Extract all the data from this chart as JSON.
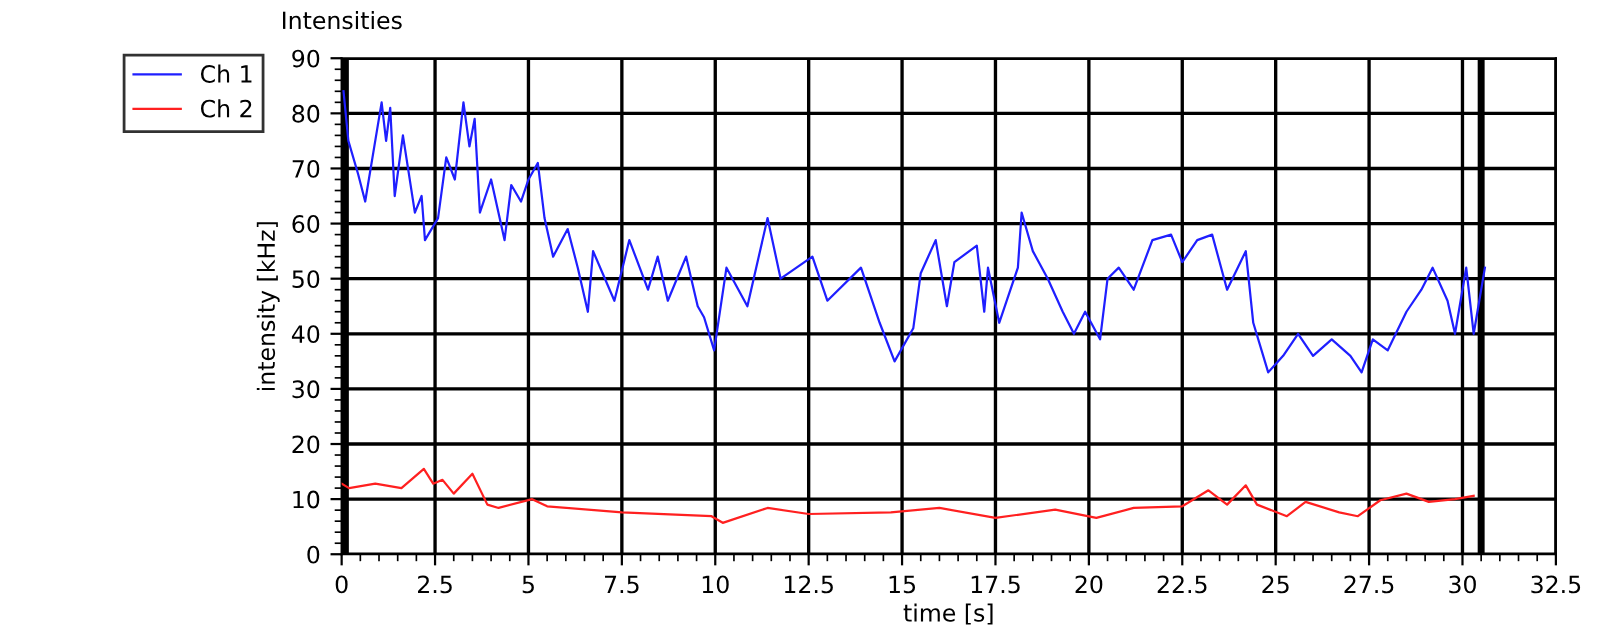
{
  "chart_data": {
    "type": "line",
    "title": "Intensities",
    "xlabel": "time [s]",
    "ylabel": "intensity [kHz]",
    "xlim": [
      0,
      32.5
    ],
    "xticks": [
      0,
      2.5,
      5,
      7.5,
      10,
      12.5,
      15,
      17.5,
      20,
      22.5,
      25,
      27.5,
      30,
      32.5
    ],
    "ylim": [
      0,
      90
    ],
    "yticks": [
      0,
      10,
      20,
      30,
      40,
      50,
      60,
      70,
      80,
      90
    ],
    "grid": true,
    "legend": "top left",
    "line_style": "solid",
    "marker": "none",
    "ref_lines": [
      {
        "axis": "x",
        "value": 0.1,
        "color": "#000000"
      },
      {
        "axis": "x",
        "value": 30.5,
        "color": "#000000"
      }
    ],
    "series": [
      {
        "name": "Ch 1",
        "color": "#1f1fff",
        "x": [
          0.05,
          0.18,
          0.44,
          0.63,
          0.85,
          1.07,
          1.19,
          1.3,
          1.42,
          1.64,
          1.96,
          2.14,
          2.23,
          2.58,
          2.8,
          3.03,
          3.26,
          3.42,
          3.56,
          3.7,
          4.0,
          4.36,
          4.54,
          4.8,
          5.0,
          5.25,
          5.43,
          5.66,
          6.05,
          6.32,
          6.59,
          6.73,
          7.3,
          7.7,
          8.2,
          8.46,
          8.73,
          9.22,
          9.53,
          9.7,
          9.97,
          10.3,
          10.86,
          11.4,
          11.75,
          12.6,
          13.0,
          13.9,
          14.4,
          14.8,
          15.3,
          15.5,
          15.9,
          16.2,
          16.4,
          17.0,
          17.2,
          17.3,
          17.6,
          18.1,
          18.2,
          18.5,
          18.9,
          19.3,
          19.6,
          19.9,
          20.3,
          20.5,
          20.8,
          21.2,
          21.7,
          22.2,
          22.5,
          22.9,
          23.3,
          23.7,
          24.2,
          24.4,
          24.8,
          25.2,
          25.6,
          26.0,
          26.5,
          27.0,
          27.3,
          27.6,
          28.0,
          28.5,
          28.9,
          29.2,
          29.6,
          29.8,
          30.1,
          30.3,
          30.6
        ],
        "values": [
          84,
          75,
          69,
          64,
          73,
          82,
          75,
          81,
          65,
          76,
          62,
          65,
          57,
          61,
          72,
          68,
          82,
          74,
          79,
          62,
          68,
          57,
          67,
          64,
          68,
          71,
          61,
          54,
          59,
          52,
          44,
          55,
          46,
          57,
          48,
          54,
          46,
          54,
          45,
          43,
          37,
          52,
          45,
          61,
          50,
          54,
          46,
          52,
          42,
          35,
          41,
          51,
          57,
          45,
          53,
          56,
          44,
          52,
          42,
          52,
          62,
          55,
          50,
          44,
          40,
          44,
          39,
          50,
          52,
          48,
          57,
          58,
          53,
          57,
          58,
          48,
          55,
          42,
          33,
          36,
          40,
          36,
          39,
          36,
          33,
          39,
          37,
          44,
          48,
          52,
          46,
          40,
          52,
          40,
          52
        ]
      },
      {
        "name": "Ch 2",
        "color": "#ff2020",
        "x": [
          0.0,
          0.2,
          0.9,
          1.6,
          2.2,
          2.45,
          2.7,
          3.0,
          3.5,
          3.9,
          4.2,
          5.1,
          5.5,
          7.5,
          9.9,
          10.2,
          11.4,
          12.5,
          14.7,
          16.0,
          17.5,
          19.1,
          20.2,
          21.2,
          22.5,
          23.2,
          23.7,
          24.2,
          24.5,
          25.3,
          25.8,
          26.7,
          27.2,
          27.8,
          28.5,
          29.1,
          29.8,
          30.3
        ],
        "values": [
          12.8,
          12,
          12.8,
          12,
          15.5,
          12.8,
          13.5,
          11,
          14.6,
          9,
          8.4,
          10,
          8.7,
          7.6,
          6.9,
          5.7,
          8.4,
          7.3,
          7.6,
          8.4,
          6.6,
          8.1,
          6.6,
          8.4,
          8.7,
          11.6,
          9,
          12.5,
          9,
          6.9,
          9.5,
          7.6,
          6.9,
          9.8,
          11,
          9.5,
          10,
          10.6
        ]
      }
    ]
  }
}
